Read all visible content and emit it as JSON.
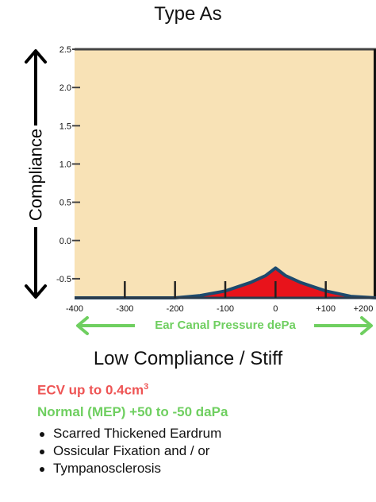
{
  "header": {
    "title": "Type As"
  },
  "chart_data": {
    "type": "line",
    "title": "Type As",
    "xlabel": "Ear Canal Pressure dePa",
    "ylabel": "Compliance",
    "xlim": [
      -400,
      200
    ],
    "ylim": [
      -0.75,
      2.5
    ],
    "x_ticks": [
      -400,
      -300,
      -200,
      -100,
      0,
      100,
      200
    ],
    "x_tick_labels": [
      "-400",
      "-300",
      "-200",
      "-100",
      "0",
      "+100",
      "+200"
    ],
    "y_ticks": [
      2.5,
      2.0,
      1.5,
      1.0,
      0.5,
      0.0,
      -0.5
    ],
    "y_tick_labels": [
      "2.5",
      "2.0",
      "1.5",
      "1.0",
      "0.5",
      "0.0",
      "-0.5"
    ],
    "series": [
      {
        "x": [
          -400,
          -200,
          -150,
          -100,
          -50,
          -20,
          0,
          20,
          50,
          100,
          150,
          200
        ],
        "y": [
          -0.75,
          -0.75,
          -0.72,
          -0.66,
          -0.55,
          -0.46,
          -0.36,
          -0.46,
          -0.55,
          -0.66,
          -0.73,
          -0.75
        ]
      }
    ],
    "grid": false,
    "colors": {
      "background": "#f8e2b6",
      "fill": "#e8131b",
      "curve": "#1d4a6e",
      "axis_arrows": "#000000"
    }
  },
  "subtitle": "Low Compliance / Stiff",
  "ecv": {
    "text": "ECV up to 0.4cm",
    "sup": "3"
  },
  "mep": "Normal (MEP) +50 to -50 daPa",
  "causes": [
    "Scarred Thickened Eardrum",
    "Ossicular Fixation and / or",
    "Tympanosclerosis"
  ]
}
